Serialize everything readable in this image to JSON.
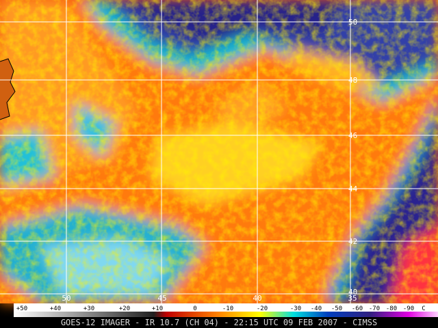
{
  "map": {
    "latitude_labels": [
      "50",
      "48",
      "46",
      "44",
      "42",
      "40"
    ],
    "longitude_labels": [
      "50",
      "45",
      "40",
      "35"
    ],
    "colorbar": {
      "labels": [
        "+50",
        "+40",
        "+30",
        "+20",
        "+10",
        "0",
        "-10",
        "-20",
        "-30",
        "-40",
        "-50",
        "-60",
        "-70",
        "-80",
        "-90"
      ],
      "unit": "C"
    },
    "caption": "GOES-12 IMAGER - IR 10.7 (CH 04) - 22:15 UTC 09 FEB 2007 - CIMSS"
  }
}
